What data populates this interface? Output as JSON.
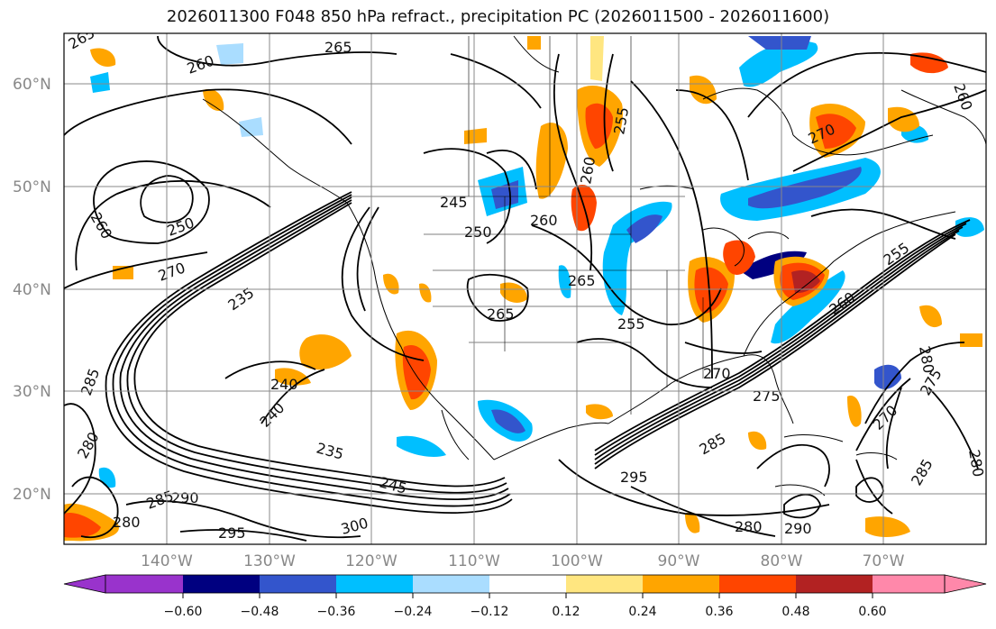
{
  "title": "2026011300 F048 850 hPa refract., precipitation PC (2026011500 - 2026011600)",
  "map": {
    "lat_labels": [
      "60°N",
      "50°N",
      "40°N",
      "30°N",
      "20°N"
    ],
    "lon_labels": [
      "140°W",
      "130°W",
      "120°W",
      "110°W",
      "100°W",
      "90°W",
      "80°W",
      "70°W"
    ],
    "contour_labels": [
      "265",
      "260",
      "255",
      "250",
      "245",
      "240",
      "235",
      "270",
      "275",
      "280",
      "285",
      "290",
      "295",
      "300"
    ],
    "colors": {
      "neg_extreme": "#9933cc",
      "neg_060": "#000080",
      "neg_048": "#3355cc",
      "neg_036": "#00bfff",
      "neg_024": "#aaddff",
      "neutral": "#ffffff",
      "pos_012": "#ffe680",
      "pos_024": "#ffa500",
      "pos_036": "#ff4500",
      "pos_048": "#b22222",
      "pos_extreme": "#ff88aa"
    }
  },
  "colorbar": {
    "ticks": [
      "−0.60",
      "−0.48",
      "−0.36",
      "−0.24",
      "−0.12",
      "0.12",
      "0.24",
      "0.36",
      "0.48",
      "0.60"
    ]
  }
}
